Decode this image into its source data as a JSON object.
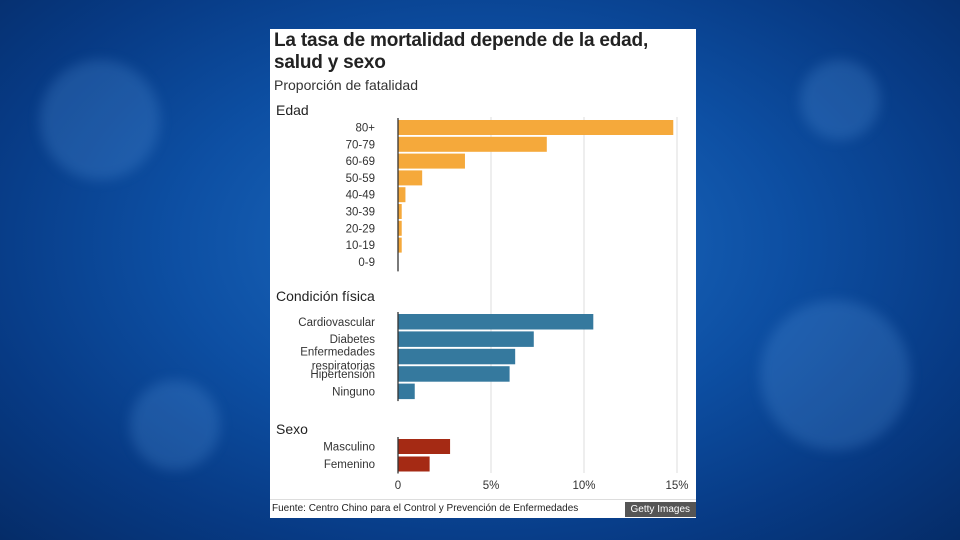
{
  "chart_data": {
    "type": "bar",
    "orientation": "horizontal",
    "title": "La tasa de mortalidad depende de la edad, salud y sexo",
    "subtitle": "Proporción de fatalidad",
    "xlim": [
      0,
      15
    ],
    "xticks": [
      "0",
      "5%",
      "10%",
      "15%"
    ],
    "grid": true,
    "groups": [
      {
        "name": "Edad",
        "color": "#f5a93b",
        "categories": [
          "80+",
          "70-79",
          "60-69",
          "50-59",
          "40-49",
          "30-39",
          "20-29",
          "10-19",
          "0-9"
        ],
        "values": [
          14.8,
          8.0,
          3.6,
          1.3,
          0.4,
          0.2,
          0.2,
          0.2,
          0.0
        ]
      },
      {
        "name": "Condición física",
        "color": "#35799e",
        "categories": [
          "Cardiovascular",
          "Diabetes",
          "Enfermedades respiratorias",
          "Hipertensión",
          "Ninguno"
        ],
        "values": [
          10.5,
          7.3,
          6.3,
          6.0,
          0.9
        ]
      },
      {
        "name": "Sexo",
        "color": "#a52a14",
        "categories": [
          "Masculino",
          "Femenino"
        ],
        "values": [
          2.8,
          1.7
        ]
      }
    ]
  },
  "footer": {
    "source": "Fuente: Centro Chino para el Control y Prevención de Enfermedades",
    "credit": "Getty Images"
  }
}
